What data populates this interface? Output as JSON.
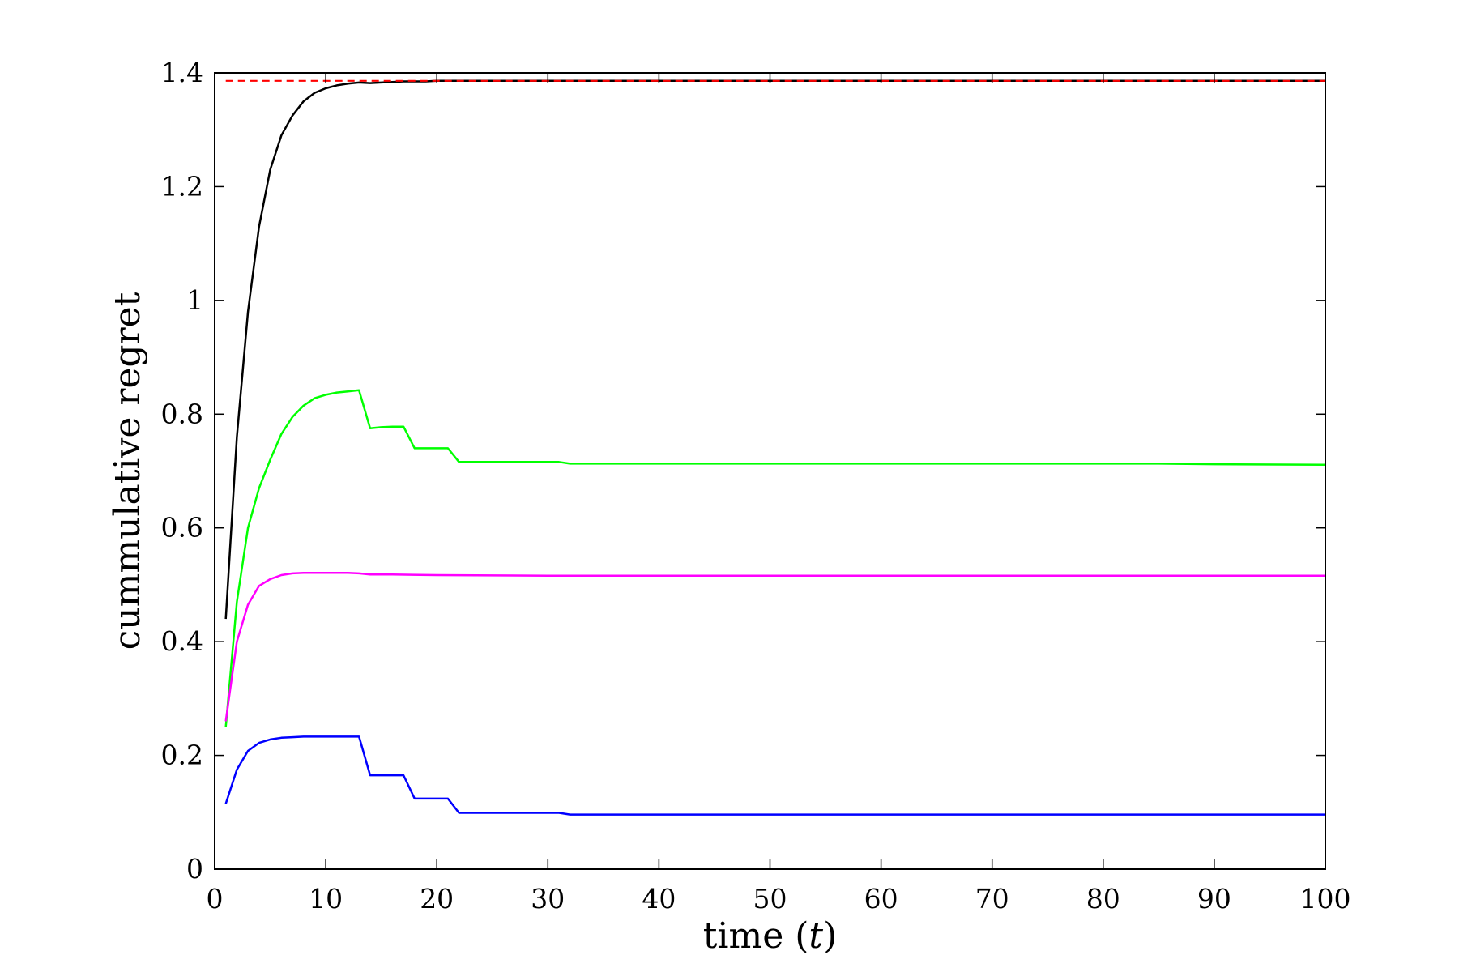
{
  "chart_data": {
    "type": "line",
    "title": "",
    "xlabel": "time (",
    "xlabel_var": "t",
    "xlabel_close": ")",
    "ylabel": "cummulative regret",
    "xlim": [
      0,
      100
    ],
    "ylim": [
      0,
      1.4
    ],
    "xticks": [
      0,
      10,
      20,
      30,
      40,
      50,
      60,
      70,
      80,
      90,
      100
    ],
    "yticks": [
      0,
      0.2,
      0.4,
      0.6,
      0.8,
      1,
      1.2,
      1.4
    ],
    "ytick_labels": [
      "0",
      "0.2",
      "0.4",
      "0.6",
      "0.8",
      "1",
      "1.2",
      "1.4"
    ],
    "grid": false,
    "legend": "none",
    "series": [
      {
        "color": "#000000",
        "style": "solid",
        "x": [
          1,
          2,
          3,
          4,
          5,
          6,
          7,
          8,
          9,
          10,
          11,
          12,
          13,
          14,
          15,
          16,
          17,
          18,
          19,
          20,
          22,
          25,
          30,
          40,
          50,
          60,
          70,
          80,
          90,
          100
        ],
        "y": [
          0.44,
          0.76,
          0.98,
          1.13,
          1.23,
          1.29,
          1.325,
          1.35,
          1.365,
          1.373,
          1.378,
          1.381,
          1.383,
          1.382,
          1.383,
          1.384,
          1.385,
          1.385,
          1.385,
          1.386,
          1.386,
          1.386,
          1.386,
          1.386,
          1.386,
          1.386,
          1.386,
          1.386,
          1.386,
          1.386
        ]
      },
      {
        "color": "#00ff00",
        "style": "solid",
        "x": [
          1,
          2,
          3,
          4,
          5,
          6,
          7,
          8,
          9,
          10,
          11,
          12,
          13,
          14,
          15,
          16,
          17,
          18,
          19,
          20,
          21,
          22,
          25,
          30,
          31,
          32,
          40,
          50,
          60,
          70,
          80,
          85,
          90,
          100
        ],
        "y": [
          0.25,
          0.47,
          0.6,
          0.67,
          0.72,
          0.765,
          0.795,
          0.815,
          0.828,
          0.834,
          0.838,
          0.84,
          0.842,
          0.775,
          0.777,
          0.778,
          0.778,
          0.74,
          0.74,
          0.74,
          0.74,
          0.716,
          0.716,
          0.716,
          0.716,
          0.713,
          0.713,
          0.713,
          0.713,
          0.713,
          0.713,
          0.713,
          0.712,
          0.711
        ]
      },
      {
        "color": "#ff00ff",
        "style": "solid",
        "x": [
          1,
          2,
          3,
          4,
          5,
          6,
          7,
          8,
          9,
          10,
          12,
          13,
          14,
          16,
          20,
          30,
          40,
          50,
          60,
          70,
          80,
          90,
          100
        ],
        "y": [
          0.26,
          0.4,
          0.465,
          0.498,
          0.51,
          0.517,
          0.52,
          0.521,
          0.521,
          0.521,
          0.521,
          0.52,
          0.518,
          0.518,
          0.517,
          0.516,
          0.516,
          0.516,
          0.516,
          0.516,
          0.516,
          0.516,
          0.516
        ]
      },
      {
        "color": "#0000ff",
        "style": "solid",
        "x": [
          1,
          2,
          3,
          4,
          5,
          6,
          7,
          8,
          9,
          10,
          11,
          12,
          13,
          14,
          15,
          16,
          17,
          18,
          19,
          20,
          21,
          22,
          25,
          30,
          31,
          32,
          40,
          50,
          60,
          70,
          80,
          90,
          100
        ],
        "y": [
          0.115,
          0.175,
          0.208,
          0.222,
          0.228,
          0.231,
          0.232,
          0.233,
          0.233,
          0.233,
          0.233,
          0.233,
          0.233,
          0.165,
          0.165,
          0.165,
          0.165,
          0.124,
          0.124,
          0.124,
          0.124,
          0.099,
          0.099,
          0.099,
          0.099,
          0.096,
          0.096,
          0.096,
          0.096,
          0.096,
          0.096,
          0.096,
          0.096
        ]
      },
      {
        "color": "#ff0000",
        "style": "dashed",
        "x": [
          1,
          100
        ],
        "y": [
          1.386,
          1.386
        ]
      }
    ]
  }
}
